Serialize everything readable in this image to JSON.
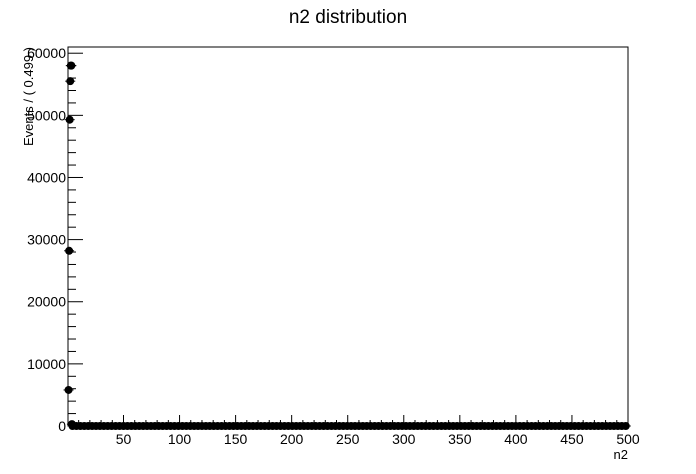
{
  "chart_data": {
    "type": "scatter",
    "title": "n2 distribution",
    "xlabel": "n2",
    "ylabel": "Events / ( 0.499 )",
    "xlim": [
      0.5,
      500
    ],
    "ylim": [
      0,
      61000
    ],
    "xticks": [
      50,
      100,
      150,
      200,
      250,
      300,
      350,
      400,
      450,
      500
    ],
    "yticks": [
      0,
      10000,
      20000,
      30000,
      40000,
      50000,
      60000
    ],
    "xtick_labels": [
      "50",
      "100",
      "150",
      "200",
      "250",
      "300",
      "350",
      "400",
      "450",
      "500"
    ],
    "ytick_labels": [
      "0",
      "10000",
      "20000",
      "30000",
      "40000",
      "50000",
      "60000"
    ],
    "grid": false,
    "series": [
      {
        "x": [
          1,
          1.5,
          2,
          2.5,
          3,
          3.5,
          4
        ],
        "y": [
          5800,
          28200,
          49300,
          55500,
          58000,
          58000,
          300
        ]
      }
    ],
    "tail": {
      "from": 4.5,
      "to": 499.5,
      "step": 3.5,
      "value": 0
    }
  }
}
